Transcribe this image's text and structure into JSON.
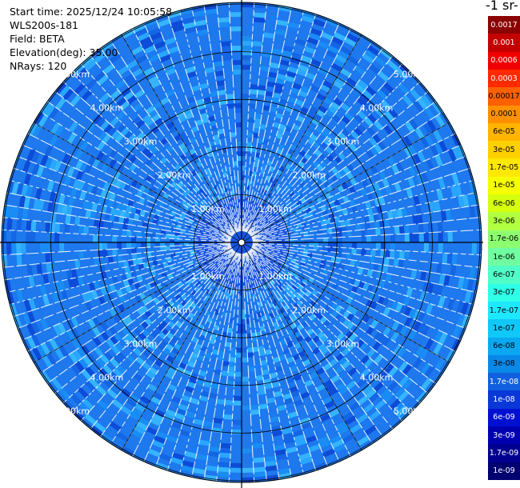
{
  "info": {
    "start_time": "Start time: 2025/12/24 10:05:58",
    "instrument": "WLS200s-181",
    "field": "Field: BETA",
    "elevation": "Elevation(deg): 35.00",
    "nrays": "NRays: 120"
  },
  "units_label": "-1 sr-",
  "range_rings": {
    "labels": [
      "1.00km",
      "2.00km",
      "3.00km",
      "4.00km",
      "5.00km"
    ],
    "values_km": [
      1,
      2,
      3,
      4,
      5
    ]
  },
  "colorbar": {
    "levels": [
      "0.0017",
      "0.001",
      "0.0006",
      "0.0003",
      "0.00017",
      "0.0001",
      "6e-05",
      "3e-05",
      "1.7e-05",
      "1e-05",
      "6e-06",
      "3e-06",
      "1.7e-06",
      "1e-06",
      "6e-07",
      "3e-07",
      "1.7e-07",
      "1e-07",
      "6e-08",
      "3e-08",
      "1.7e-08",
      "1e-08",
      "6e-09",
      "3e-09",
      "1.7e-09",
      "1e-09"
    ],
    "colors": [
      "#8b0000",
      "#c40000",
      "#f00000",
      "#ff2a00",
      "#ff6000",
      "#ff9000",
      "#ffb400",
      "#ffd000",
      "#ffe800",
      "#f5ff00",
      "#d6ff10",
      "#b0ff40",
      "#8cff70",
      "#70ffa0",
      "#50ffc8",
      "#30ffe8",
      "#1ee8ff",
      "#10c8f8",
      "#0aa8f0",
      "#0a88e8",
      "#1060e0",
      "#0a38d8",
      "#0010d0",
      "#0000b0",
      "#000090",
      "#000070"
    ]
  },
  "colors": {
    "background": "#ffffff",
    "field_mid": "#1e78ee",
    "field_light": "#2aa6ff",
    "field_dark": "#0c4cd8",
    "grid": "#000000",
    "ring_label": "#ffffff"
  }
}
